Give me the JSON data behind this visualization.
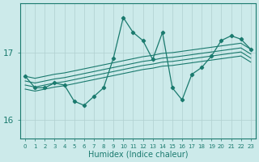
{
  "xlabel": "Humidex (Indice chaleur)",
  "bg_color": "#cceaea",
  "line_color": "#1a7a6e",
  "grid_color": "#b0d0d0",
  "xmin": 0,
  "xmax": 23,
  "ymin": 15.73,
  "ymax": 17.73,
  "yticks": [
    16,
    17
  ],
  "zigzag_y": [
    16.65,
    16.48,
    16.48,
    16.55,
    16.52,
    16.28,
    16.22,
    16.35,
    16.48,
    16.92,
    17.52,
    17.3,
    17.18,
    16.9,
    17.3,
    16.48,
    16.3,
    16.68,
    16.78,
    16.95,
    17.18,
    17.25,
    17.2,
    17.05
  ],
  "straight_lines": [
    [
      16.65,
      16.62,
      16.65,
      16.68,
      16.7,
      16.73,
      16.76,
      16.79,
      16.82,
      16.85,
      16.88,
      16.91,
      16.94,
      16.96,
      16.99,
      17.0,
      17.02,
      17.04,
      17.06,
      17.08,
      17.1,
      17.12,
      17.14,
      17.05
    ],
    [
      16.58,
      16.55,
      16.58,
      16.61,
      16.63,
      16.66,
      16.69,
      16.72,
      16.75,
      16.78,
      16.81,
      16.84,
      16.87,
      16.89,
      16.92,
      16.93,
      16.95,
      16.97,
      16.99,
      17.01,
      17.03,
      17.05,
      17.07,
      16.98
    ],
    [
      16.52,
      16.49,
      16.52,
      16.55,
      16.57,
      16.6,
      16.63,
      16.66,
      16.69,
      16.72,
      16.75,
      16.78,
      16.81,
      16.83,
      16.86,
      16.87,
      16.89,
      16.91,
      16.93,
      16.95,
      16.97,
      16.99,
      17.01,
      16.92
    ],
    [
      16.46,
      16.43,
      16.46,
      16.49,
      16.51,
      16.54,
      16.57,
      16.6,
      16.63,
      16.66,
      16.69,
      16.72,
      16.75,
      16.77,
      16.8,
      16.81,
      16.83,
      16.85,
      16.87,
      16.89,
      16.91,
      16.93,
      16.95,
      16.86
    ]
  ]
}
